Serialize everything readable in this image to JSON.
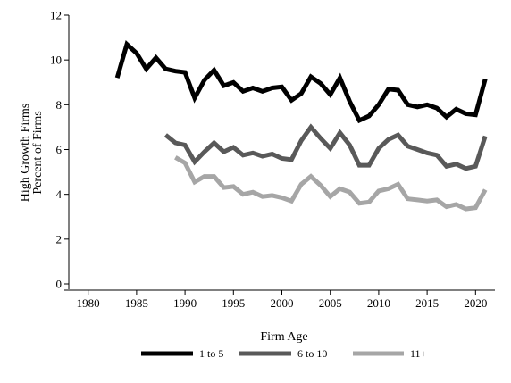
{
  "chart_data": {
    "type": "line",
    "title": "",
    "xlabel": "Firm Age",
    "ylabel": [
      "High Growth Firms",
      "Percent of Firms"
    ],
    "xlim": [
      1978,
      2022
    ],
    "ylim": [
      0,
      12
    ],
    "xticks": [
      1980,
      1985,
      1990,
      1995,
      2000,
      2005,
      2010,
      2015,
      2020
    ],
    "yticks": [
      0,
      2,
      4,
      6,
      8,
      10,
      12
    ],
    "grid": false,
    "legend_position": "bottom",
    "series": [
      {
        "name": "1 to 5",
        "color": "#000000",
        "x": [
          1983,
          1984,
          1985,
          1986,
          1987,
          1988,
          1989,
          1990,
          1991,
          1992,
          1993,
          1994,
          1995,
          1996,
          1997,
          1998,
          1999,
          2000,
          2001,
          2002,
          2003,
          2004,
          2005,
          2006,
          2007,
          2008,
          2009,
          2010,
          2011,
          2012,
          2013,
          2014,
          2015,
          2016,
          2017,
          2018,
          2019,
          2020,
          2021
        ],
        "values": [
          9.2,
          10.7,
          10.3,
          9.6,
          10.1,
          9.6,
          9.5,
          9.45,
          8.3,
          9.1,
          9.55,
          8.85,
          9.0,
          8.6,
          8.75,
          8.6,
          8.75,
          8.8,
          8.2,
          8.5,
          9.25,
          8.95,
          8.45,
          9.2,
          8.15,
          7.3,
          7.5,
          8.0,
          8.7,
          8.65,
          8.0,
          7.9,
          8.0,
          7.85,
          7.45,
          7.8,
          7.6,
          7.55,
          9.15
        ]
      },
      {
        "name": "6 to 10",
        "color": "#595959",
        "x": [
          1988,
          1989,
          1990,
          1991,
          1992,
          1993,
          1994,
          1995,
          1996,
          1997,
          1998,
          1999,
          2000,
          2001,
          2002,
          2003,
          2004,
          2005,
          2006,
          2007,
          2008,
          2009,
          2010,
          2011,
          2012,
          2013,
          2014,
          2015,
          2016,
          2017,
          2018,
          2019,
          2020,
          2021
        ],
        "values": [
          6.65,
          6.3,
          6.2,
          5.45,
          5.9,
          6.3,
          5.9,
          6.1,
          5.75,
          5.85,
          5.7,
          5.8,
          5.6,
          5.55,
          6.4,
          7.0,
          6.5,
          6.05,
          6.75,
          6.2,
          5.3,
          5.3,
          6.05,
          6.45,
          6.65,
          6.15,
          6.0,
          5.85,
          5.75,
          5.25,
          5.35,
          5.15,
          5.25,
          6.6
        ]
      },
      {
        "name": "11+",
        "color": "#a6a6a6",
        "x": [
          1989,
          1990,
          1991,
          1992,
          1993,
          1994,
          1995,
          1996,
          1997,
          1998,
          1999,
          2000,
          2001,
          2002,
          2003,
          2004,
          2005,
          2006,
          2007,
          2008,
          2009,
          2010,
          2011,
          2012,
          2013,
          2014,
          2015,
          2016,
          2017,
          2018,
          2019,
          2020,
          2021
        ],
        "values": [
          5.65,
          5.4,
          4.55,
          4.8,
          4.8,
          4.3,
          4.35,
          4.0,
          4.1,
          3.9,
          3.95,
          3.85,
          3.7,
          4.45,
          4.8,
          4.4,
          3.9,
          4.25,
          4.1,
          3.6,
          3.65,
          4.15,
          4.25,
          4.45,
          3.8,
          3.75,
          3.7,
          3.75,
          3.45,
          3.55,
          3.35,
          3.4,
          4.2
        ]
      }
    ]
  }
}
